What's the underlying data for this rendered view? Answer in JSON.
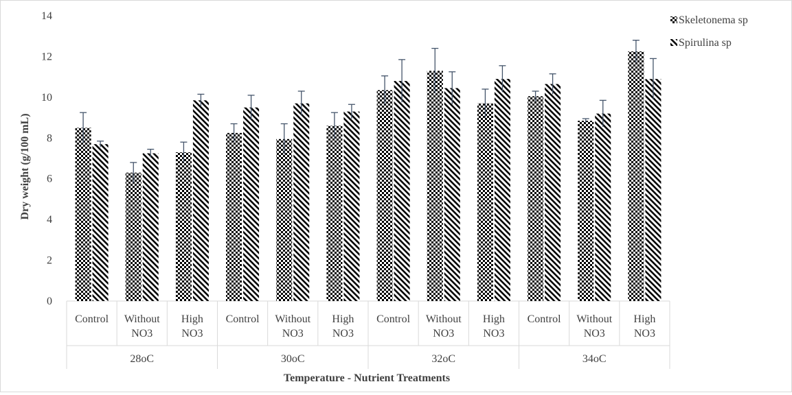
{
  "chart_data": {
    "type": "bar",
    "xlabel": "Temperature - Nutrient Treatments",
    "ylabel": "Dry weight (g/100 mL)",
    "ylim": [
      0,
      14
    ],
    "yticks": [
      0,
      2,
      4,
      6,
      8,
      10,
      12,
      14
    ],
    "grid": false,
    "legend_position": "top-right",
    "groups": [
      {
        "label": "28oC",
        "categories": [
          [
            "Control"
          ],
          [
            "Without",
            "NO3"
          ],
          [
            "High",
            "NO3"
          ]
        ]
      },
      {
        "label": "30oC",
        "categories": [
          [
            "Control"
          ],
          [
            "Without",
            "NO3"
          ],
          [
            "High",
            "NO3"
          ]
        ]
      },
      {
        "label": "32oC",
        "categories": [
          [
            "Control"
          ],
          [
            "Without",
            "NO3"
          ],
          [
            "High",
            "NO3"
          ]
        ]
      },
      {
        "label": "34oC",
        "categories": [
          [
            "Control"
          ],
          [
            "Without",
            "NO3"
          ],
          [
            "High",
            "NO3"
          ]
        ]
      }
    ],
    "series": [
      {
        "name": "Skeletonema sp",
        "pattern": "checker",
        "values": [
          8.5,
          6.3,
          7.3,
          8.25,
          7.95,
          8.6,
          10.35,
          11.3,
          9.7,
          10.05,
          8.85,
          12.25
        ],
        "errors": [
          0.75,
          0.5,
          0.5,
          0.45,
          0.75,
          0.65,
          0.7,
          1.1,
          0.7,
          0.25,
          0.1,
          0.55
        ]
      },
      {
        "name": "Spirulina sp",
        "pattern": "diagonal",
        "values": [
          7.7,
          7.25,
          9.85,
          9.5,
          9.7,
          9.3,
          10.8,
          10.45,
          10.9,
          10.65,
          9.2,
          10.9
        ],
        "errors": [
          0.15,
          0.2,
          0.3,
          0.6,
          0.6,
          0.35,
          1.05,
          0.8,
          0.65,
          0.5,
          0.65,
          1.0
        ]
      }
    ],
    "colors": {
      "bar_ink": "#000000",
      "error_bar": "#44546a",
      "axis": "#d9d9d9",
      "text": "#404040"
    }
  }
}
